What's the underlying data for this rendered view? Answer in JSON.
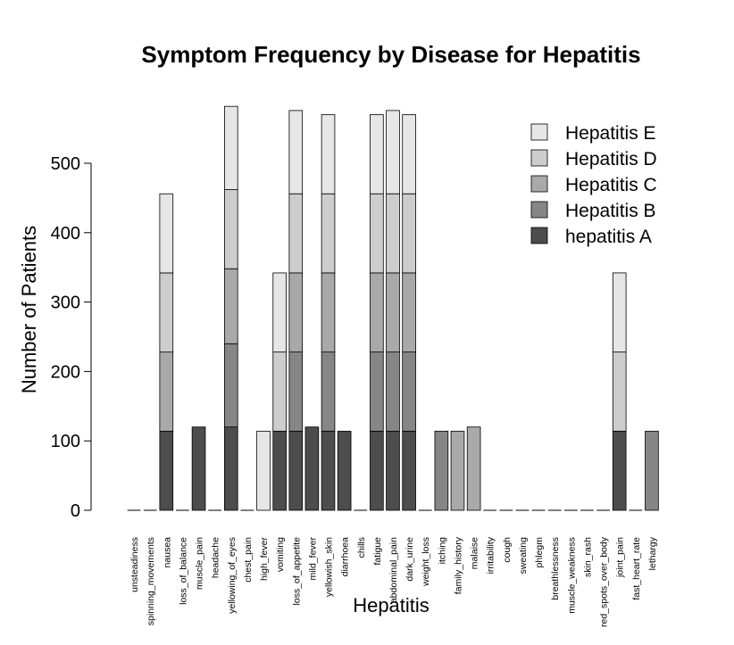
{
  "chart_data": {
    "type": "bar",
    "stacked": true,
    "title": "Symptom Frequency by Disease for Hepatitis",
    "xlabel": "Hepatitis",
    "ylabel": "Number of Patients",
    "ylim": [
      0,
      580
    ],
    "yticks": [
      0,
      100,
      200,
      300,
      400,
      500
    ],
    "grid": false,
    "legend_position": "top-right",
    "categories": [
      "unsteadiness",
      "spinning_movements",
      "nausea",
      "loss_of_balance",
      "muscle_pain",
      "headache",
      "yellowing_of_eyes",
      "chest_pain",
      "high_fever",
      "vomiting",
      "loss_of_appetite",
      "mild_fever",
      "yellowish_skin",
      "diarrhoea",
      "chills",
      "fatigue",
      "abdominal_pain",
      "dark_urine",
      "weight_loss",
      "itching",
      "family_history",
      "malaise",
      "irritability",
      "cough",
      "sweating",
      "phlegm",
      "breathlessness",
      "muscle_weakness",
      "skin_rash",
      "red_spots_over_body",
      "joint_pain",
      "fast_heart_rate",
      "lethargy"
    ],
    "series": [
      {
        "name": "hepatitis A",
        "color": "#4d4d4d",
        "values": [
          0,
          0,
          114,
          0,
          120,
          0,
          120,
          0,
          0,
          114,
          114,
          120,
          114,
          114,
          0,
          114,
          114,
          114,
          0,
          0,
          0,
          0,
          0,
          0,
          0,
          0,
          0,
          0,
          0,
          0,
          114,
          0,
          0
        ]
      },
      {
        "name": "Hepatitis B",
        "color": "#868686",
        "values": [
          0,
          0,
          0,
          0,
          0,
          0,
          120,
          0,
          0,
          0,
          114,
          0,
          114,
          0,
          0,
          114,
          114,
          114,
          0,
          114,
          0,
          0,
          0,
          0,
          0,
          0,
          0,
          0,
          0,
          0,
          0,
          0,
          114
        ]
      },
      {
        "name": "Hepatitis C",
        "color": "#a9a9a9",
        "values": [
          0,
          0,
          114,
          0,
          0,
          0,
          108,
          0,
          0,
          0,
          114,
          0,
          114,
          0,
          0,
          114,
          114,
          114,
          0,
          0,
          114,
          120,
          0,
          0,
          0,
          0,
          0,
          0,
          0,
          0,
          0,
          0,
          0
        ]
      },
      {
        "name": "Hepatitis D",
        "color": "#cdcdcd",
        "values": [
          0,
          0,
          114,
          0,
          0,
          0,
          114,
          0,
          0,
          114,
          114,
          0,
          114,
          0,
          0,
          114,
          114,
          114,
          0,
          0,
          0,
          0,
          0,
          0,
          0,
          0,
          0,
          0,
          0,
          0,
          114,
          0,
          0
        ]
      },
      {
        "name": "Hepatitis E",
        "color": "#e6e6e6",
        "values": [
          0,
          0,
          114,
          0,
          0,
          0,
          120,
          0,
          114,
          114,
          120,
          0,
          114,
          0,
          0,
          114,
          120,
          114,
          0,
          0,
          0,
          0,
          0,
          0,
          0,
          0,
          0,
          0,
          0,
          0,
          114,
          0,
          0
        ]
      }
    ]
  }
}
